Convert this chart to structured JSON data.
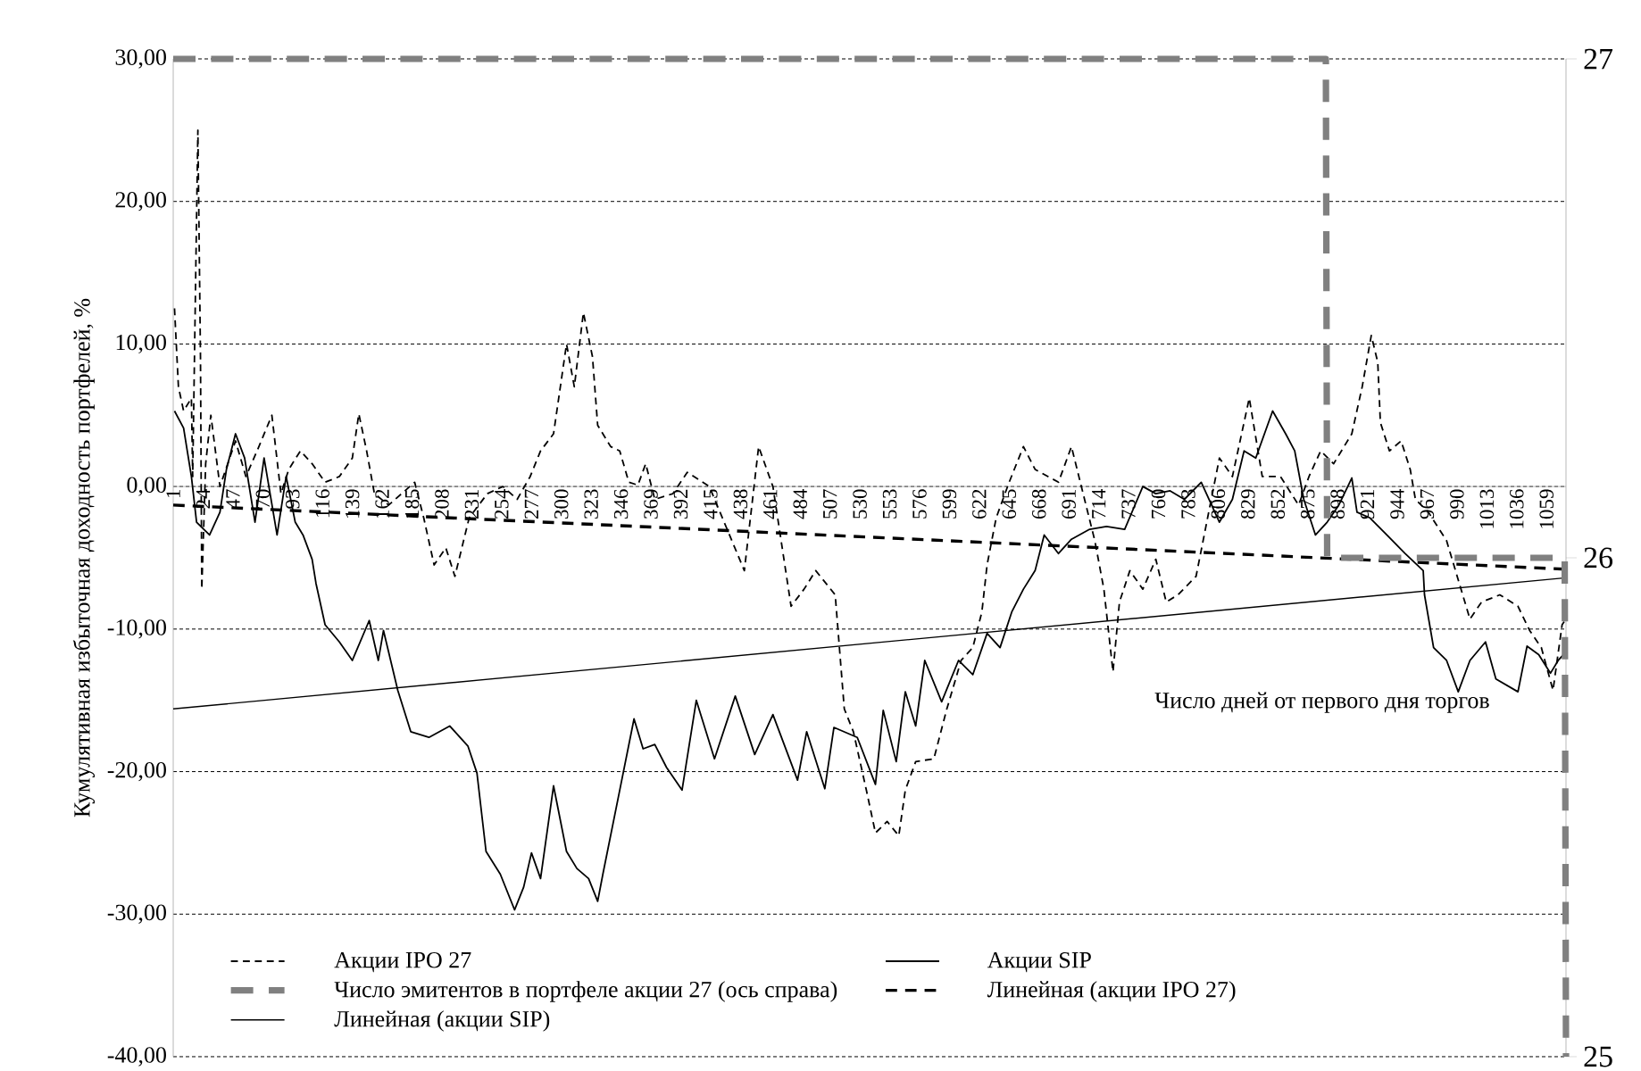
{
  "chart_data": {
    "type": "line",
    "ylabel": "Кумулятивная избыточная доходность портфелей, %",
    "xlabel": "Число дней от первого дня торгов",
    "xlim": [
      1,
      1074
    ],
    "xticks": [
      1,
      24,
      47,
      70,
      93,
      116,
      139,
      162,
      185,
      208,
      231,
      254,
      277,
      300,
      323,
      346,
      369,
      392,
      415,
      438,
      461,
      484,
      507,
      530,
      553,
      576,
      599,
      622,
      645,
      668,
      691,
      714,
      737,
      760,
      783,
      806,
      829,
      852,
      875,
      898,
      921,
      944,
      967,
      990,
      1013,
      1036,
      1059
    ],
    "ylim": [
      -40,
      30
    ],
    "yticks": [
      {
        "value": 30,
        "label": "30,00"
      },
      {
        "value": 20,
        "label": "20,00"
      },
      {
        "value": 10,
        "label": "10,00"
      },
      {
        "value": 0,
        "label": "0,00"
      },
      {
        "value": -10,
        "label": "-10,00"
      },
      {
        "value": -20,
        "label": "-20,00"
      },
      {
        "value": -30,
        "label": "-30,00"
      },
      {
        "value": -40,
        "label": "-40,00"
      }
    ],
    "y2lim": [
      25,
      27
    ],
    "y2ticks": [
      25,
      26,
      27
    ],
    "grid": "y",
    "legend": "bottom",
    "series": [
      {
        "name": "Акции IPO 27",
        "color": "#000000",
        "line_style": "dashed",
        "x": [
          2,
          5,
          9,
          15,
          16,
          20,
          22,
          23,
          26,
          30,
          37,
          49,
          57,
          67,
          77,
          84,
          90,
          99,
          108,
          118,
          129,
          139,
          144,
          150,
          156,
          167,
          177,
          187,
          194,
          202,
          211,
          218,
          229,
          243,
          255,
          266,
          276,
          284,
          294,
          304,
          310,
          317,
          324,
          328,
          338,
          345,
          352,
          359,
          365,
          372,
          386,
          397,
          414,
          441,
          452,
          463,
          477,
          487,
          496,
          511,
          518,
          525,
          535,
          542,
          551,
          560,
          565,
          573,
          587,
          597,
          608,
          617,
          624,
          628,
          635,
          645,
          656,
          665,
          683,
          693,
          702,
          711,
          718,
          725,
          730,
          738,
          748,
          758,
          766,
          775,
          789,
          807,
          817,
          830,
          840,
          854,
          868,
          876,
          885,
          895,
          909,
          917,
          924,
          929,
          931,
          938,
          947,
          954,
          958,
          968,
          982,
          1000,
          1009,
          1023,
          1037,
          1046,
          1055,
          1064,
          1071,
          1074
        ],
        "values": [
          12.5,
          7.0,
          5.3,
          6.2,
          0.7,
          25.0,
          9.1,
          -7.2,
          1.6,
          5.0,
          0.0,
          3.2,
          0.7,
          2.8,
          5.0,
          -0.5,
          1.2,
          2.5,
          1.6,
          0.3,
          0.7,
          2.0,
          5.1,
          2.5,
          -0.5,
          -1.3,
          -0.5,
          0.3,
          -2.2,
          -5.5,
          -4.3,
          -6.3,
          -2.2,
          -0.5,
          0.0,
          -0.9,
          0.7,
          2.5,
          3.7,
          10.0,
          7.0,
          12.2,
          9.1,
          4.3,
          2.8,
          2.5,
          0.3,
          0.1,
          1.6,
          -0.9,
          -0.5,
          1.0,
          0.0,
          -5.9,
          2.8,
          0.0,
          -8.4,
          -7.2,
          -5.9,
          -7.6,
          -15.6,
          -17.2,
          -21.3,
          -24.3,
          -23.5,
          -24.5,
          -21.3,
          -19.3,
          -19.1,
          -15.6,
          -12.2,
          -11.3,
          -8.8,
          -5.5,
          -2.2,
          0.3,
          2.8,
          1.2,
          0.3,
          2.8,
          -0.5,
          -3.8,
          -7.2,
          -13.0,
          -8.1,
          -5.9,
          -7.2,
          -5.1,
          -8.1,
          -7.6,
          -6.3,
          2.0,
          0.7,
          6.2,
          0.7,
          0.7,
          -1.3,
          0.7,
          2.5,
          1.6,
          3.7,
          7.0,
          10.6,
          8.7,
          4.5,
          2.5,
          3.2,
          1.2,
          -0.9,
          -1.8,
          -3.8,
          -9.3,
          -8.1,
          -7.6,
          -8.4,
          -10.1,
          -11.3,
          -14.3,
          -9.7,
          -9.3
        ]
      },
      {
        "name": "Акции SIP",
        "color": "#000000",
        "line_style": "solid",
        "x": [
          2,
          9,
          15,
          19,
          29,
          37,
          42,
          49,
          56,
          64,
          71,
          81,
          88,
          95,
          101,
          108,
          111,
          118,
          129,
          139,
          152,
          159,
          163,
          174,
          184,
          198,
          214,
          228,
          235,
          242,
          253,
          264,
          271,
          277,
          284,
          294,
          304,
          312,
          321,
          328,
          332,
          345,
          356,
          363,
          372,
          381,
          393,
          404,
          418,
          434,
          449,
          463,
          482,
          489,
          503,
          510,
          528,
          542,
          548,
          558,
          565,
          573,
          580,
          593,
          606,
          617,
          628,
          638,
          647,
          656,
          665,
          672,
          683,
          693,
          707,
          720,
          734,
          748,
          758,
          769,
          780,
          793,
          807,
          817,
          826,
          835,
          848,
          858,
          865,
          872,
          881,
          890,
          899,
          909,
          913,
          923,
          936,
          950,
          964,
          965,
          972,
          982,
          991,
          1000,
          1012,
          1020,
          1037,
          1044,
          1053,
          1062,
          1068,
          1074
        ],
        "values": [
          5.3,
          4.1,
          0.7,
          -2.5,
          -3.4,
          -1.8,
          1.2,
          3.7,
          2.0,
          -2.5,
          2.0,
          -3.4,
          0.7,
          -2.5,
          -3.4,
          -5.1,
          -6.8,
          -9.7,
          -10.9,
          -12.2,
          -9.4,
          -12.2,
          -10.1,
          -14.3,
          -17.2,
          -17.6,
          -16.8,
          -18.2,
          -20.1,
          -25.6,
          -27.2,
          -29.7,
          -28.1,
          -25.7,
          -27.5,
          -21.0,
          -25.6,
          -26.8,
          -27.5,
          -29.1,
          -27.2,
          -21.3,
          -16.3,
          -18.4,
          -18.1,
          -19.7,
          -21.3,
          -15.0,
          -19.1,
          -14.7,
          -18.8,
          -16.0,
          -20.6,
          -17.2,
          -21.2,
          -16.9,
          -17.6,
          -20.9,
          -15.7,
          -19.3,
          -14.4,
          -16.8,
          -12.2,
          -15.1,
          -12.2,
          -13.2,
          -10.3,
          -11.3,
          -8.8,
          -7.2,
          -5.9,
          -3.4,
          -4.7,
          -3.7,
          -3.0,
          -2.8,
          -3.0,
          0.0,
          -0.5,
          -0.3,
          -0.9,
          0.3,
          -2.5,
          -0.9,
          2.5,
          2.0,
          5.3,
          3.7,
          2.5,
          -0.9,
          -3.4,
          -2.5,
          -1.3,
          0.6,
          -1.8,
          -2.2,
          -3.4,
          -4.7,
          -5.9,
          -7.6,
          -11.3,
          -12.2,
          -14.4,
          -12.2,
          -10.9,
          -13.5,
          -14.4,
          -11.2,
          -11.8,
          -13.1,
          -12.2,
          -11.6
        ]
      },
      {
        "name": "Число эмитентов в портфеле акции 27 (ось справа)",
        "color": "#808080",
        "line_style": "dashed",
        "axis": "y2",
        "x": [
          1,
          889,
          890,
          1073,
          1074
        ],
        "values": [
          27,
          27,
          26,
          26,
          25
        ]
      },
      {
        "name": "Линейная (акции  IPO 27)",
        "color": "#000000",
        "line_style": "dashed",
        "x": [
          1,
          1074
        ],
        "values": [
          -1.3,
          -5.8
        ]
      },
      {
        "name": "Линейная (акции  SIP)",
        "color": "#000000",
        "line_style": "solid",
        "x": [
          1,
          1074
        ],
        "values": [
          -15.6,
          -6.4
        ]
      }
    ]
  }
}
